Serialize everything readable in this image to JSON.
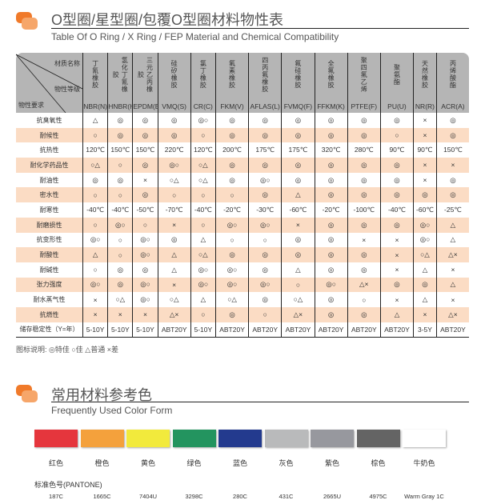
{
  "section1": {
    "title": "O型圈/星型圈/包覆O型圈材料物性表",
    "subtitle": "Table Of O Ring / X Ring / FEP Material and Chemical Compatibility"
  },
  "table": {
    "corner": {
      "material": "材质名称",
      "grade": "物性等级",
      "requirement": "物性要求"
    },
    "columns": [
      {
        "cn": "丁氰橡胶",
        "code": "NBR(N)"
      },
      {
        "cn": "氢化丁氰橡胶",
        "code": "HNBR(H)"
      },
      {
        "cn": "三元乙丙橡胶",
        "code": "EPDM(E)"
      },
      {
        "cn": "硅矽橡胶",
        "code": "VMQ(S)"
      },
      {
        "cn": "氯丁橡胶",
        "code": "CR(C)"
      },
      {
        "cn": "氟素橡胶",
        "code": "FKM(V)"
      },
      {
        "cn": "四丙氟橡胶",
        "code": "AFLAS(L)"
      },
      {
        "cn": "氟硅橡胶",
        "code": "FVMQ(F)"
      },
      {
        "cn": "全氟橡胶",
        "code": "FFKM(K)"
      },
      {
        "cn": "聚四氟乙烯",
        "code": "PTFE(F)"
      },
      {
        "cn": "聚氨酯",
        "code": "PU(U)"
      },
      {
        "cn": "天然橡胶",
        "code": "NR(R)"
      },
      {
        "cn": "丙烯酸酯",
        "code": "ACR(A)"
      }
    ],
    "rows": [
      {
        "label": "抗臭氧性",
        "values": [
          "△",
          "◎",
          "◎",
          "◎",
          "◎○",
          "◎",
          "◎",
          "◎",
          "◎",
          "◎",
          "◎",
          "×",
          "◎"
        ]
      },
      {
        "label": "耐候性",
        "values": [
          "○",
          "◎",
          "◎",
          "◎",
          "○",
          "◎",
          "◎",
          "◎",
          "◎",
          "◎",
          "○",
          "×",
          "◎"
        ]
      },
      {
        "label": "抗热性",
        "values": [
          "120℃",
          "150℃",
          "150℃",
          "220℃",
          "120℃",
          "200℃",
          "175℃",
          "175℃",
          "320℃",
          "280℃",
          "90℃",
          "90℃",
          "150℃"
        ]
      },
      {
        "label": "耐化学药品性",
        "values": [
          "○△",
          "○",
          "◎",
          "◎○",
          "○△",
          "◎",
          "◎",
          "◎",
          "◎",
          "◎",
          "◎",
          "×",
          "×"
        ]
      },
      {
        "label": "耐油性",
        "values": [
          "◎",
          "◎",
          "×",
          "○△",
          "○△",
          "◎",
          "◎○",
          "◎",
          "◎",
          "◎",
          "◎",
          "×",
          "◎"
        ]
      },
      {
        "label": "密水性",
        "values": [
          "○",
          "○",
          "◎",
          "○",
          "○",
          "○",
          "◎",
          "△",
          "◎",
          "◎",
          "◎",
          "◎",
          "◎"
        ]
      },
      {
        "label": "耐寒性",
        "values": [
          "-40℃",
          "-40℃",
          "-50℃",
          "-70℃",
          "-40℃",
          "-20℃",
          "-30℃",
          "-60℃",
          "-20℃",
          "-100℃",
          "-40℃",
          "-60℃",
          "-25℃"
        ]
      },
      {
        "label": "耐磨损性",
        "values": [
          "○",
          "◎○",
          "○",
          "×",
          "○",
          "◎○",
          "◎○",
          "×",
          "◎",
          "◎",
          "◎",
          "◎○",
          "△"
        ]
      },
      {
        "label": "抗变形性",
        "values": [
          "◎○",
          "○",
          "◎○",
          "◎",
          "△",
          "○",
          "○",
          "◎",
          "◎",
          "×",
          "×",
          "◎○",
          "△"
        ]
      },
      {
        "label": "耐酸性",
        "values": [
          "△",
          "○",
          "◎○",
          "△",
          "○△",
          "◎",
          "◎",
          "◎",
          "◎",
          "◎",
          "×",
          "○△",
          "△×"
        ]
      },
      {
        "label": "耐碱性",
        "values": [
          "○",
          "◎",
          "◎",
          "△",
          "◎○",
          "◎○",
          "◎",
          "△",
          "◎",
          "◎",
          "×",
          "△",
          "×"
        ]
      },
      {
        "label": "张力强度",
        "values": [
          "◎○",
          "◎",
          "◎○",
          "×",
          "◎○",
          "◎○",
          "◎○",
          "○",
          "◎○",
          "△×",
          "◎",
          "◎",
          "△"
        ]
      },
      {
        "label": "耐水蒸气性",
        "values": [
          "×",
          "○△",
          "◎○",
          "○△",
          "△",
          "○△",
          "◎",
          "○△",
          "◎",
          "○",
          "×",
          "△",
          "×"
        ]
      },
      {
        "label": "抗燃性",
        "values": [
          "×",
          "×",
          "×",
          "△×",
          "○",
          "◎",
          "○",
          "△×",
          "◎",
          "◎",
          "△",
          "×",
          "△×"
        ]
      },
      {
        "label": "储存稳定性（Y=年）",
        "values": [
          "5-10Y",
          "5-10Y",
          "5-10Y",
          "ABT20Y",
          "5-10Y",
          "ABT20Y",
          "ABT20Y",
          "ABT20Y",
          "ABT20Y",
          "ABT20Y",
          "ABT20Y",
          "3-5Y",
          "ABT20Y"
        ]
      }
    ]
  },
  "legend": "图标说明: ◎特佳  ○佳  △普通  ×差",
  "section2": {
    "title": "常用材料参考色",
    "subtitle": "Frequently Used Color Form"
  },
  "pantone_label": "标准色号(PANTONE)",
  "colors": [
    {
      "name": "红色",
      "pantone": "187C",
      "hex": "#e5363d"
    },
    {
      "name": "橙色",
      "pantone": "1665C",
      "hex": "#f4a13c"
    },
    {
      "name": "黄色",
      "pantone": "7404U",
      "hex": "#f2ea3c"
    },
    {
      "name": "绿色",
      "pantone": "3298C",
      "hex": "#23945f"
    },
    {
      "name": "蓝色",
      "pantone": "280C",
      "hex": "#233a8e"
    },
    {
      "name": "灰色",
      "pantone": "431C",
      "hex": "#b9babb"
    },
    {
      "name": "紫色",
      "pantone": "2665U",
      "hex": "#97989e"
    },
    {
      "name": "棕色",
      "pantone": "4975C",
      "hex": "#646464"
    },
    {
      "name": "牛奶色",
      "pantone": "Warm Gray 1C",
      "hex": "#ffffff"
    }
  ]
}
